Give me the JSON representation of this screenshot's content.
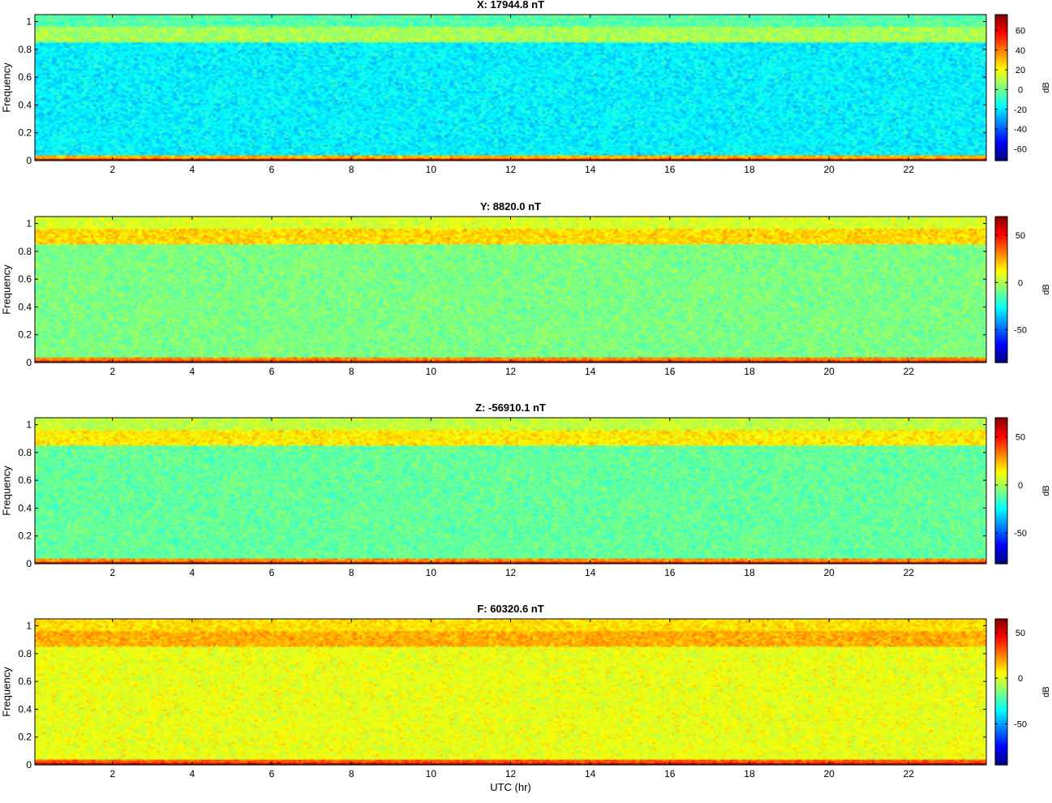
{
  "figure": {
    "xlabel": "UTC (hr)"
  },
  "colormap": "jet",
  "chart_data": [
    {
      "type": "heatmap",
      "title": "X: 17944.8 nT",
      "ylabel": "Frequency",
      "xlim": [
        0.05,
        23.95
      ],
      "ylim": [
        0,
        1.05
      ],
      "xticks": [
        2,
        4,
        6,
        8,
        10,
        12,
        14,
        16,
        18,
        20,
        22
      ],
      "yticks": [
        0,
        0.2,
        0.4,
        0.6,
        0.8,
        1
      ],
      "colorbar": {
        "label": "dB",
        "ticks": [
          -60,
          -40,
          -20,
          0,
          20,
          40,
          60
        ],
        "clim": [
          -72,
          76
        ]
      },
      "bands": [
        {
          "f0": 0.0,
          "f1": 0.015,
          "db": 74
        },
        {
          "f0": 0.015,
          "f1": 0.04,
          "db": 32
        },
        {
          "f0": 0.04,
          "f1": 0.85,
          "db": -18
        },
        {
          "f0": 0.85,
          "f1": 0.96,
          "db": 8
        },
        {
          "f0": 0.96,
          "f1": 1.05,
          "db": -4
        }
      ]
    },
    {
      "type": "heatmap",
      "title": "Y: 8820.0 nT",
      "ylabel": "Frequency",
      "xlim": [
        0.05,
        23.95
      ],
      "ylim": [
        0,
        1.05
      ],
      "xticks": [
        2,
        4,
        6,
        8,
        10,
        12,
        14,
        16,
        18,
        20,
        22
      ],
      "yticks": [
        0,
        0.2,
        0.4,
        0.6,
        0.8,
        1
      ],
      "colorbar": {
        "label": "dB",
        "ticks": [
          -50,
          0,
          50
        ],
        "clim": [
          -85,
          70
        ]
      },
      "bands": [
        {
          "f0": 0.0,
          "f1": 0.015,
          "db": 66
        },
        {
          "f0": 0.015,
          "f1": 0.04,
          "db": 30
        },
        {
          "f0": 0.04,
          "f1": 0.85,
          "db": -8
        },
        {
          "f0": 0.85,
          "f1": 0.96,
          "db": 18
        },
        {
          "f0": 0.96,
          "f1": 1.05,
          "db": 6
        }
      ]
    },
    {
      "type": "heatmap",
      "title": "Z: -56910.1 nT",
      "ylabel": "Frequency",
      "xlim": [
        0.05,
        23.95
      ],
      "ylim": [
        0,
        1.05
      ],
      "xticks": [
        2,
        4,
        6,
        8,
        10,
        12,
        14,
        16,
        18,
        20,
        22
      ],
      "yticks": [
        0,
        0.2,
        0.4,
        0.6,
        0.8,
        1
      ],
      "colorbar": {
        "label": "dB",
        "ticks": [
          -50,
          0,
          50
        ],
        "clim": [
          -82,
          70
        ]
      },
      "bands": [
        {
          "f0": 0.0,
          "f1": 0.015,
          "db": 66
        },
        {
          "f0": 0.015,
          "f1": 0.04,
          "db": 30
        },
        {
          "f0": 0.04,
          "f1": 0.85,
          "db": -10
        },
        {
          "f0": 0.85,
          "f1": 0.96,
          "db": 16
        },
        {
          "f0": 0.96,
          "f1": 1.05,
          "db": 4
        }
      ]
    },
    {
      "type": "heatmap",
      "title": "F: 60320.6 nT",
      "ylabel": "Frequency",
      "xlim": [
        0.05,
        23.95
      ],
      "ylim": [
        0,
        1.05
      ],
      "xticks": [
        2,
        4,
        6,
        8,
        10,
        12,
        14,
        16,
        18,
        20,
        22
      ],
      "yticks": [
        0,
        0.2,
        0.4,
        0.6,
        0.8,
        1
      ],
      "colorbar": {
        "label": "dB",
        "ticks": [
          -50,
          0,
          50
        ],
        "clim": [
          -95,
          65
        ]
      },
      "bands": [
        {
          "f0": 0.0,
          "f1": 0.015,
          "db": 62
        },
        {
          "f0": 0.015,
          "f1": 0.04,
          "db": 32
        },
        {
          "f0": 0.04,
          "f1": 0.85,
          "db": 2
        },
        {
          "f0": 0.85,
          "f1": 0.96,
          "db": 18
        },
        {
          "f0": 0.96,
          "f1": 1.05,
          "db": 10
        }
      ]
    }
  ]
}
